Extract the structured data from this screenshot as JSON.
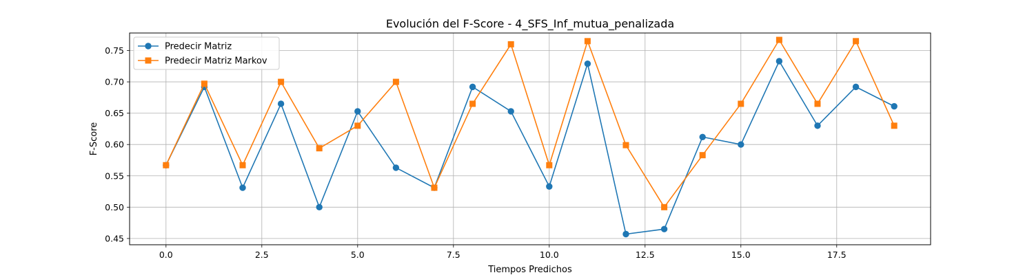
{
  "chart_data": {
    "type": "line",
    "title": "Evolución del F-Score - 4_SFS_Inf_mutua_penalizada",
    "xlabel": "Tiempos Predichos",
    "ylabel": "F-Score",
    "xlim": [
      -0.95,
      19.95
    ],
    "ylim": [
      0.44,
      0.778
    ],
    "x_ticks": [
      0.0,
      2.5,
      5.0,
      7.5,
      10.0,
      12.5,
      15.0,
      17.5
    ],
    "x_tick_labels": [
      "0.0",
      "2.5",
      "5.0",
      "7.5",
      "10.0",
      "12.5",
      "15.0",
      "17.5"
    ],
    "y_ticks": [
      0.45,
      0.5,
      0.55,
      0.6,
      0.65,
      0.7,
      0.75
    ],
    "y_tick_labels": [
      "0.45",
      "0.50",
      "0.55",
      "0.60",
      "0.65",
      "0.70",
      "0.75"
    ],
    "grid": true,
    "legend_position": "top-left",
    "x": [
      0,
      1,
      2,
      3,
      4,
      5,
      6,
      7,
      8,
      9,
      10,
      11,
      12,
      13,
      14,
      15,
      16,
      17,
      18,
      19
    ],
    "series": [
      {
        "name": "Predecir Matriz",
        "color": "#1f77b4",
        "marker": "circle",
        "values": [
          0.567,
          0.692,
          0.531,
          0.665,
          0.5,
          0.653,
          0.563,
          0.531,
          0.692,
          0.653,
          0.533,
          0.729,
          0.457,
          0.465,
          0.612,
          0.6,
          0.733,
          0.63,
          0.692,
          0.661
        ]
      },
      {
        "name": "Predecir Matriz Markov",
        "color": "#ff7f0e",
        "marker": "square",
        "values": [
          0.567,
          0.697,
          0.567,
          0.7,
          0.594,
          0.63,
          0.7,
          0.531,
          0.665,
          0.76,
          0.567,
          0.765,
          0.599,
          0.5,
          0.583,
          0.665,
          0.767,
          0.665,
          0.765,
          0.63
        ]
      }
    ]
  }
}
